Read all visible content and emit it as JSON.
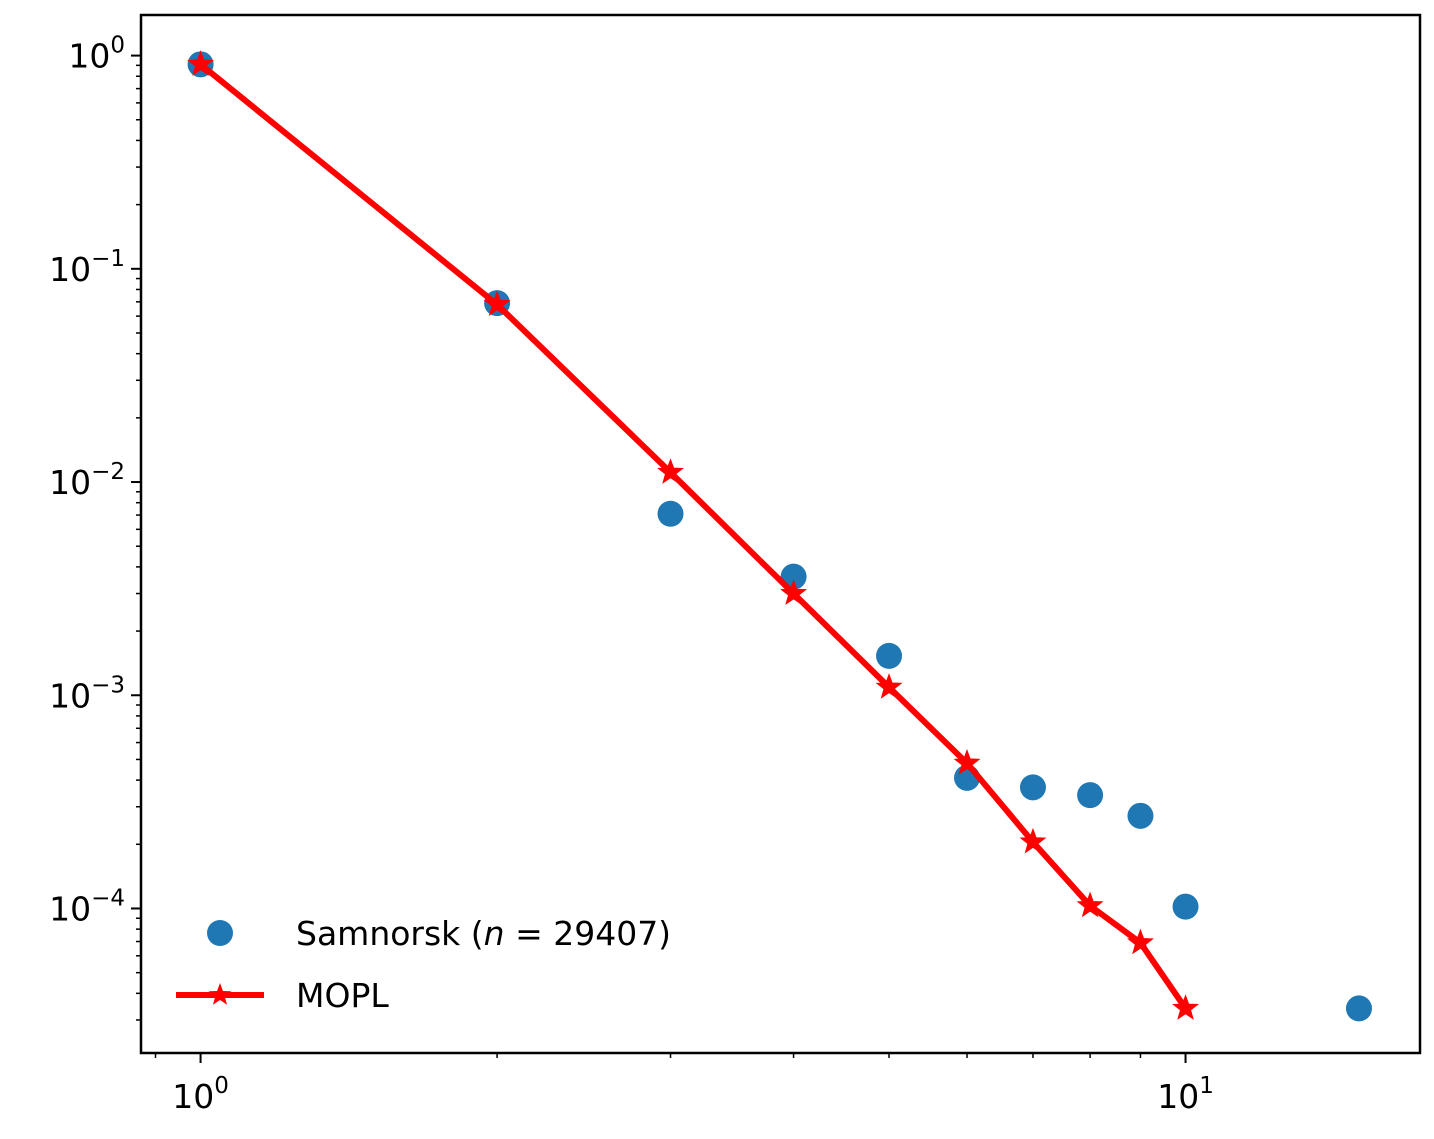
{
  "chart_data": {
    "type": "scatter",
    "title": "",
    "xlabel": "",
    "ylabel": "",
    "x_scale": "log",
    "y_scale": "log",
    "xlim": [
      0.87,
      17.3
    ],
    "ylim": [
      2.1e-05,
      1.55
    ],
    "grid": false,
    "legend_position": "lower-left",
    "x_ticks": [
      {
        "base": "10",
        "exp": "0",
        "value": 1
      },
      {
        "base": "10",
        "exp": "1",
        "value": 10
      }
    ],
    "y_ticks": [
      {
        "base": "10",
        "exp": "0",
        "value": 1
      },
      {
        "base": "10",
        "exp": "−1",
        "value": 0.1
      },
      {
        "base": "10",
        "exp": "−2",
        "value": 0.01
      },
      {
        "base": "10",
        "exp": "−3",
        "value": 0.001
      },
      {
        "base": "10",
        "exp": "−4",
        "value": 0.0001
      }
    ],
    "series": [
      {
        "name": "Samnorsk (n = 29407)",
        "legend": {
          "prefix": "Samnorsk (",
          "italic": "n",
          "suffix": " = 29407)"
        },
        "kind": "markers",
        "marker": "circle",
        "color": "#1f77b4",
        "x": [
          1,
          2,
          3,
          4,
          5,
          6,
          7,
          8,
          9,
          10,
          15
        ],
        "y": [
          0.91,
          0.069,
          0.0071,
          0.0036,
          0.00153,
          0.00041,
          0.00037,
          0.00034,
          0.000272,
          0.000102,
          3.4e-05
        ]
      },
      {
        "name": "MOPL",
        "legend": {
          "prefix": "MOPL",
          "italic": "",
          "suffix": ""
        },
        "kind": "line-markers",
        "marker": "star",
        "color": "#ff0000",
        "x": [
          1,
          2,
          3,
          4,
          5,
          6,
          7,
          8,
          9,
          10
        ],
        "y": [
          0.91,
          0.068,
          0.0111,
          0.003,
          0.00109,
          0.00048,
          0.000205,
          0.000103,
          6.9e-05,
          3.4e-05
        ]
      }
    ]
  }
}
